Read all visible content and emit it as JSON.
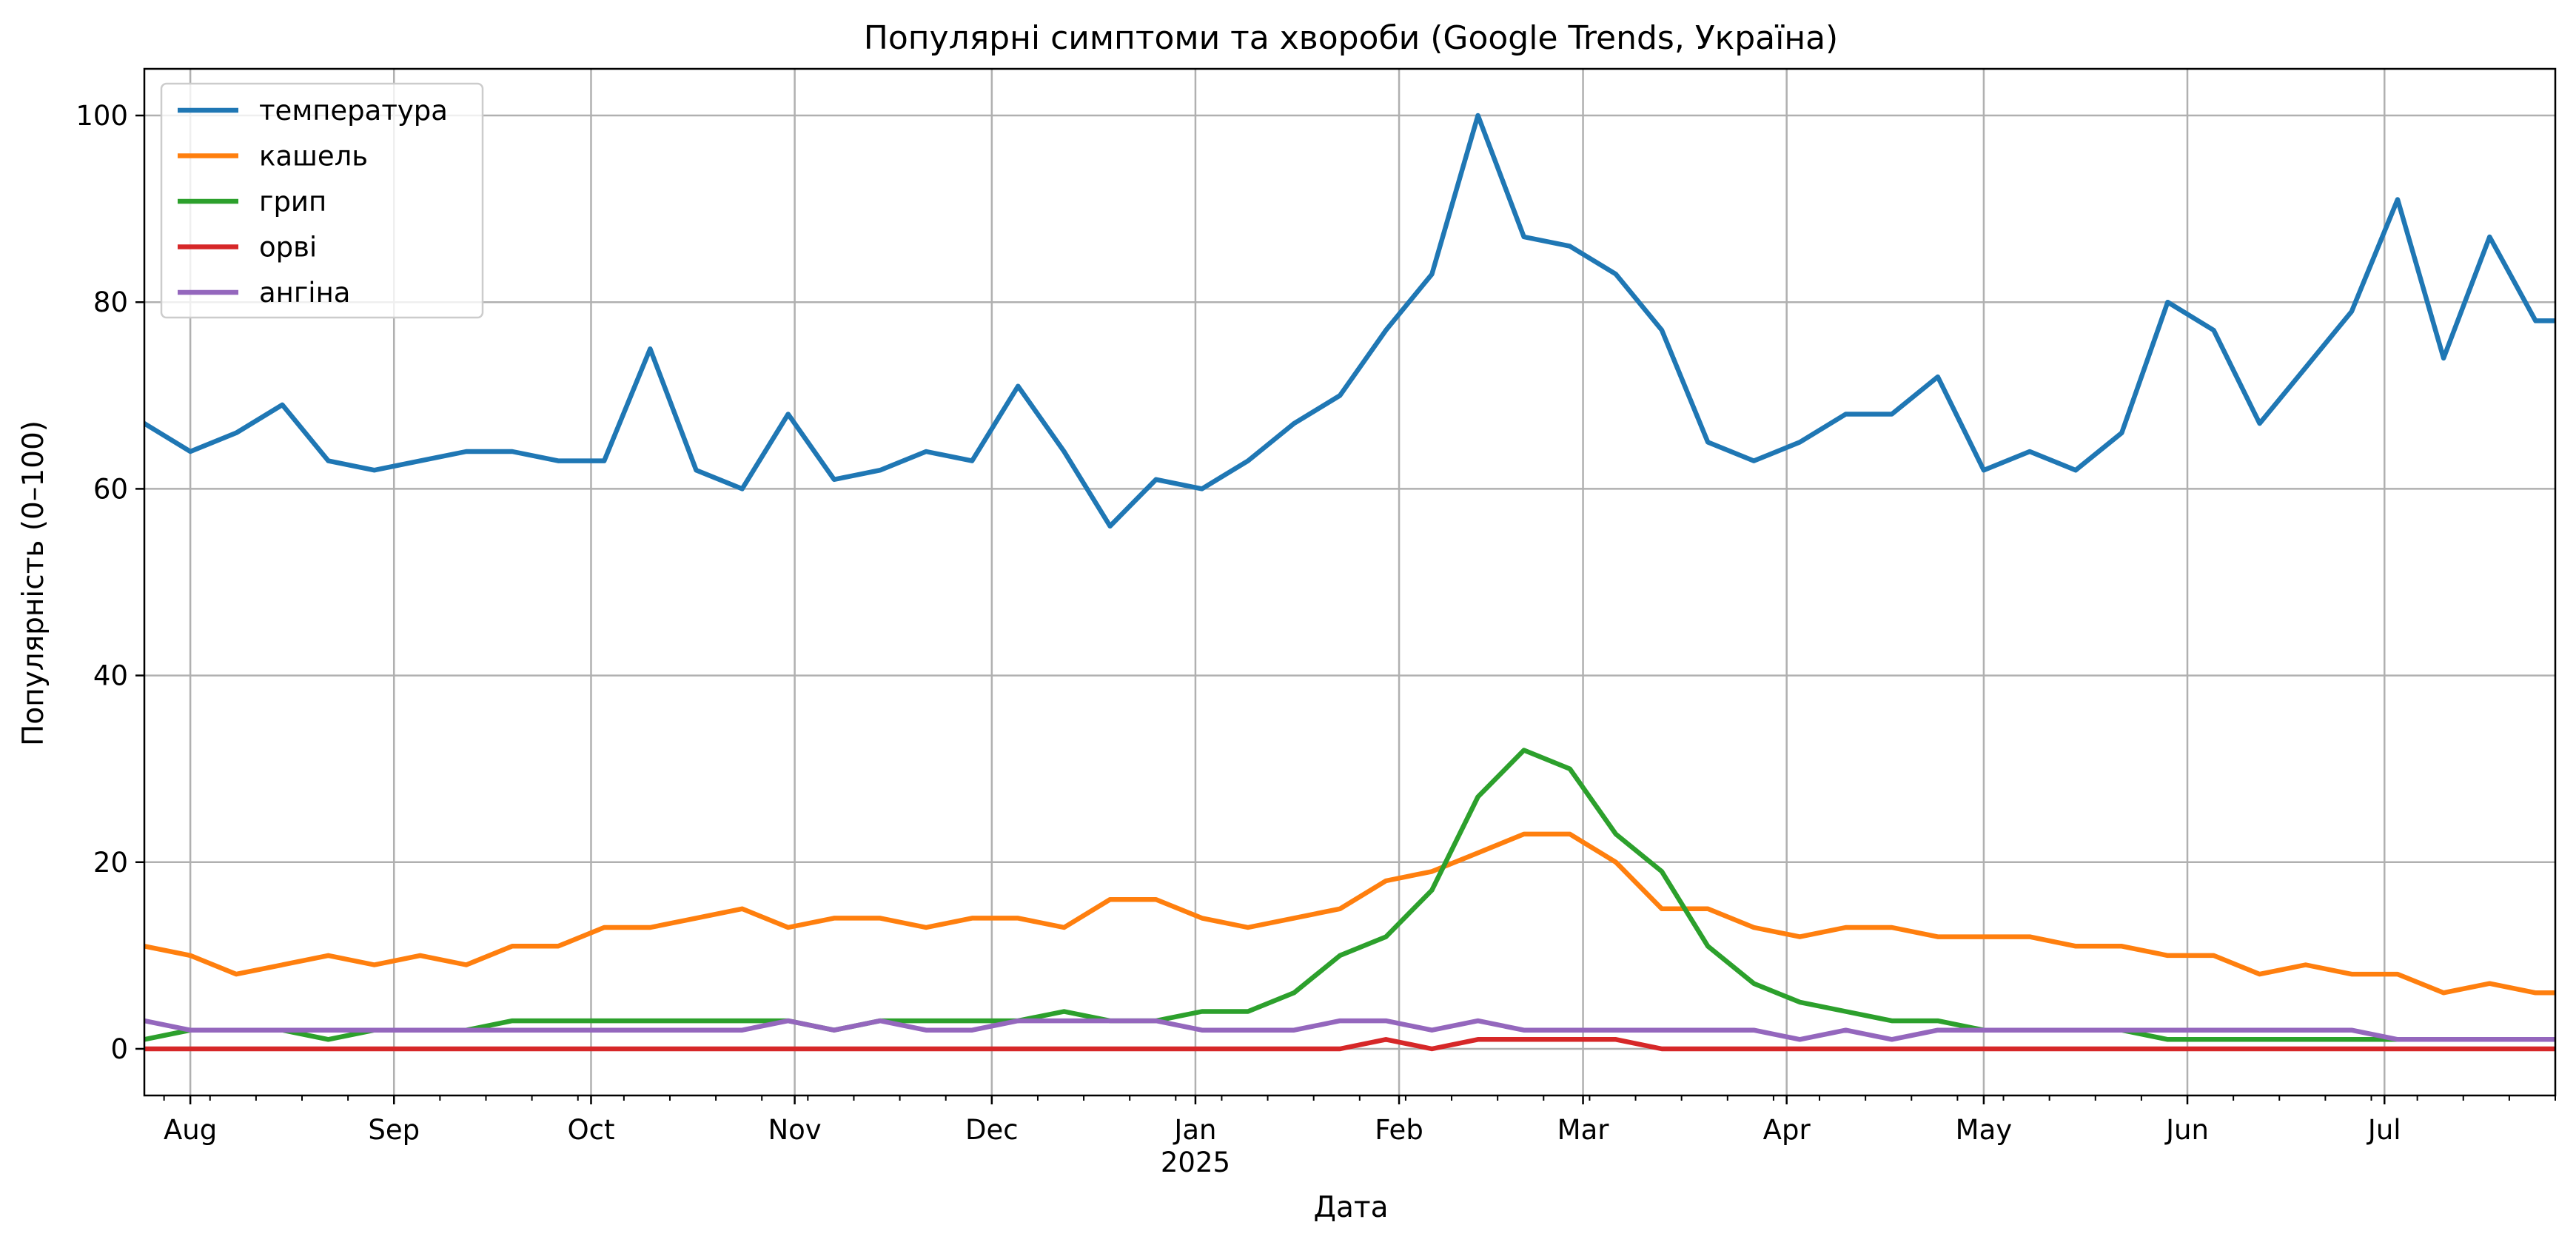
{
  "chart_data": {
    "type": "line",
    "title": "Популярні симптоми та хвороби (Google Trends, Україна)",
    "xlabel": "Дата",
    "ylabel": "Популярність (0–100)",
    "ylim": [
      -5,
      105
    ],
    "xlim": [
      "2024-07-25",
      "2025-07-27"
    ],
    "yticks": [
      0,
      20,
      40,
      60,
      80,
      100
    ],
    "xticks": [
      {
        "date": "2024-08-01",
        "label": "Aug",
        "sub": ""
      },
      {
        "date": "2024-09-01",
        "label": "Sep",
        "sub": ""
      },
      {
        "date": "2024-10-01",
        "label": "Oct",
        "sub": ""
      },
      {
        "date": "2024-11-01",
        "label": "Nov",
        "sub": ""
      },
      {
        "date": "2024-12-01",
        "label": "Dec",
        "sub": ""
      },
      {
        "date": "2025-01-01",
        "label": "Jan",
        "sub": "2025"
      },
      {
        "date": "2025-02-01",
        "label": "Feb",
        "sub": ""
      },
      {
        "date": "2025-03-01",
        "label": "Mar",
        "sub": ""
      },
      {
        "date": "2025-04-01",
        "label": "Apr",
        "sub": ""
      },
      {
        "date": "2025-05-01",
        "label": "May",
        "sub": ""
      },
      {
        "date": "2025-06-01",
        "label": "Jun",
        "sub": ""
      },
      {
        "date": "2025-07-01",
        "label": "Jul",
        "sub": ""
      }
    ],
    "grid": true,
    "legend_position": "top-left",
    "x": [
      "2024-07-25",
      "2024-08-01",
      "2024-08-08",
      "2024-08-15",
      "2024-08-22",
      "2024-08-29",
      "2024-09-05",
      "2024-09-12",
      "2024-09-19",
      "2024-09-26",
      "2024-10-03",
      "2024-10-10",
      "2024-10-17",
      "2024-10-24",
      "2024-10-31",
      "2024-11-07",
      "2024-11-14",
      "2024-11-21",
      "2024-11-28",
      "2024-12-05",
      "2024-12-12",
      "2024-12-19",
      "2024-12-26",
      "2025-01-02",
      "2025-01-09",
      "2025-01-16",
      "2025-01-23",
      "2025-01-30",
      "2025-02-06",
      "2025-02-13",
      "2025-02-20",
      "2025-02-27",
      "2025-03-06",
      "2025-03-13",
      "2025-03-20",
      "2025-03-27",
      "2025-04-03",
      "2025-04-10",
      "2025-04-17",
      "2025-04-24",
      "2025-05-01",
      "2025-05-08",
      "2025-05-15",
      "2025-05-22",
      "2025-05-29",
      "2025-06-05",
      "2025-06-12",
      "2025-06-19",
      "2025-06-26",
      "2025-07-03",
      "2025-07-10",
      "2025-07-17",
      "2025-07-24",
      "2025-07-31"
    ],
    "series": [
      {
        "name": "температура",
        "color": "#1f77b4",
        "values": [
          67,
          64,
          66,
          69,
          63,
          62,
          63,
          64,
          64,
          63,
          63,
          75,
          62,
          60,
          68,
          61,
          62,
          64,
          63,
          71,
          64,
          56,
          61,
          60,
          63,
          67,
          70,
          77,
          83,
          100,
          87,
          86,
          83,
          77,
          65,
          63,
          65,
          68,
          68,
          72,
          62,
          64,
          62,
          66,
          80,
          77,
          67,
          73,
          79,
          91,
          74,
          87,
          78,
          78
        ]
      },
      {
        "name": "кашель",
        "color": "#ff7f0e",
        "values": [
          11,
          10,
          8,
          9,
          10,
          9,
          10,
          9,
          11,
          11,
          13,
          13,
          14,
          15,
          13,
          14,
          14,
          13,
          14,
          14,
          13,
          16,
          16,
          14,
          13,
          14,
          15,
          18,
          19,
          21,
          23,
          23,
          20,
          15,
          15,
          13,
          12,
          13,
          13,
          12,
          12,
          12,
          11,
          11,
          10,
          10,
          8,
          9,
          8,
          8,
          6,
          7,
          6,
          6
        ]
      },
      {
        "name": "грип",
        "color": "#2ca02c",
        "values": [
          1,
          2,
          2,
          2,
          1,
          2,
          2,
          2,
          3,
          3,
          3,
          3,
          3,
          3,
          3,
          2,
          3,
          3,
          3,
          3,
          4,
          3,
          3,
          4,
          4,
          6,
          10,
          12,
          17,
          27,
          32,
          30,
          23,
          19,
          11,
          7,
          5,
          4,
          3,
          3,
          2,
          2,
          2,
          2,
          1,
          1,
          1,
          1,
          1,
          1,
          1,
          1,
          1,
          1
        ]
      },
      {
        "name": "орві",
        "color": "#d62728",
        "values": [
          0,
          0,
          0,
          0,
          0,
          0,
          0,
          0,
          0,
          0,
          0,
          0,
          0,
          0,
          0,
          0,
          0,
          0,
          0,
          0,
          0,
          0,
          0,
          0,
          0,
          0,
          0,
          1,
          0,
          1,
          1,
          1,
          1,
          0,
          0,
          0,
          0,
          0,
          0,
          0,
          0,
          0,
          0,
          0,
          0,
          0,
          0,
          0,
          0,
          0,
          0,
          0,
          0,
          0
        ]
      },
      {
        "name": "ангіна",
        "color": "#9467bd",
        "values": [
          3,
          2,
          2,
          2,
          2,
          2,
          2,
          2,
          2,
          2,
          2,
          2,
          2,
          2,
          3,
          2,
          3,
          2,
          2,
          3,
          3,
          3,
          3,
          2,
          2,
          2,
          3,
          3,
          2,
          3,
          2,
          2,
          2,
          2,
          2,
          2,
          1,
          2,
          1,
          2,
          2,
          2,
          2,
          2,
          2,
          2,
          2,
          2,
          2,
          1,
          1,
          1,
          1,
          1
        ]
      }
    ]
  }
}
